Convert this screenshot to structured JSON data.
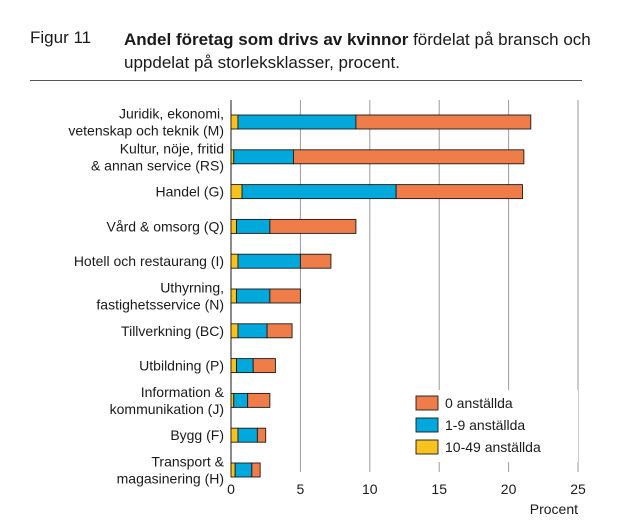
{
  "figure_label": "Figur 11",
  "title_bold": "Andel företag som drivs av kvinnor",
  "title_rest": " fördelat på bransch och uppdelat på storleksklasser, procent.",
  "chart_data": {
    "type": "bar",
    "orientation": "horizontal",
    "stacked": true,
    "categories": [
      [
        "Juridik, ekonomi,",
        "vetenskap och teknik (M)"
      ],
      [
        "Kultur, nöje, fritid",
        "& annan service (RS)"
      ],
      [
        "Handel (G)"
      ],
      [
        "Vård & omsorg (Q)"
      ],
      [
        "Hotell och restaurang (I)"
      ],
      [
        "Uthyrning,",
        "fastighetsservice (N)"
      ],
      [
        "Tillverkning (BC)"
      ],
      [
        "Utbildning (P)"
      ],
      [
        "Information &",
        "kommunikation (J)"
      ],
      [
        "Bygg (F)"
      ],
      [
        "Transport &",
        "magasinering (H)"
      ]
    ],
    "series": [
      {
        "name": "10-49 anställda",
        "color": "#f9c31f",
        "values": [
          0.5,
          0.2,
          0.8,
          0.4,
          0.5,
          0.4,
          0.5,
          0.4,
          0.2,
          0.5,
          0.3
        ]
      },
      {
        "name": "1-9 anställda",
        "color": "#00a8dc",
        "values": [
          8.5,
          4.3,
          11.1,
          2.4,
          4.5,
          2.4,
          2.1,
          1.2,
          1.0,
          1.4,
          1.2
        ]
      },
      {
        "name": "0 anställda",
        "color": "#ee7d4a",
        "values": [
          12.6,
          16.6,
          9.1,
          6.2,
          2.2,
          2.2,
          1.8,
          1.6,
          1.6,
          0.6,
          0.6
        ]
      }
    ],
    "legend_order": [
      "0 anställda",
      "1-9 anställda",
      "10-49 anställda"
    ],
    "xlim": [
      0,
      25
    ],
    "xticks": [
      0,
      5,
      10,
      15,
      20,
      25
    ],
    "xlabel": "Procent",
    "grid": "vertical",
    "legend_position": "bottom-right"
  }
}
